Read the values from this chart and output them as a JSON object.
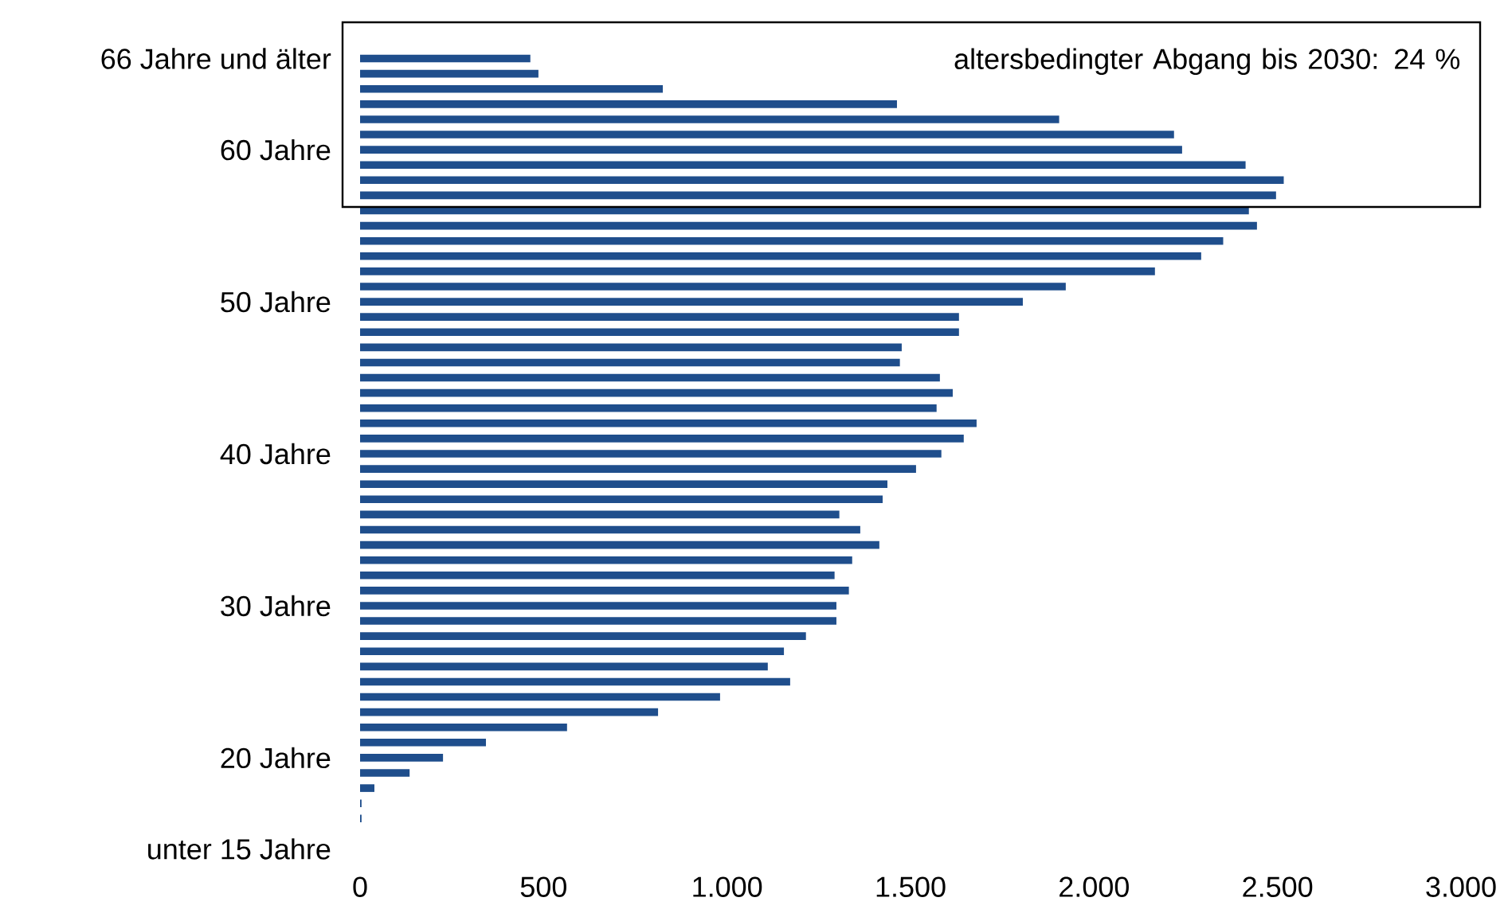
{
  "chart_data": {
    "type": "bar",
    "orientation": "horizontal",
    "color": "#1f4e8c",
    "categories": [
      "66 Jahre und älter",
      null,
      null,
      null,
      null,
      null,
      "60 Jahre",
      null,
      null,
      null,
      null,
      null,
      null,
      null,
      null,
      null,
      "50 Jahre",
      null,
      null,
      null,
      null,
      null,
      null,
      null,
      null,
      null,
      "40 Jahre",
      null,
      null,
      null,
      null,
      null,
      null,
      null,
      null,
      null,
      "30 Jahre",
      null,
      null,
      null,
      null,
      null,
      null,
      null,
      null,
      null,
      "20 Jahre",
      null,
      null,
      null,
      null,
      null,
      "unter 15 Jahre"
    ],
    "values": [
      464,
      486,
      825,
      1463,
      1905,
      2218,
      2240,
      2413,
      2517,
      2496,
      2422,
      2444,
      2352,
      2292,
      2166,
      1923,
      1806,
      1632,
      1632,
      1476,
      1471,
      1580,
      1615,
      1571,
      1680,
      1645,
      1584,
      1515,
      1437,
      1424,
      1306,
      1363,
      1415,
      1341,
      1293,
      1332,
      1298,
      1298,
      1215,
      1155,
      1111,
      1172,
      981,
      812,
      564,
      343,
      226,
      135,
      39,
      4,
      4,
      0,
      0
    ],
    "xlim": [
      0,
      3000
    ],
    "xticks": [
      0,
      {
        "value": 500,
        "label": "500"
      },
      {
        "value": 1000,
        "label": "1.000"
      },
      {
        "value": 1500,
        "label": "1.500"
      },
      {
        "value": 2000,
        "label": "2.000"
      },
      {
        "value": 2500,
        "label": "2.500"
      },
      {
        "value": 3000,
        "label": "3.000"
      }
    ],
    "annotations": [
      "altersbedingter Abgang bis 2030: 24 %"
    ]
  }
}
